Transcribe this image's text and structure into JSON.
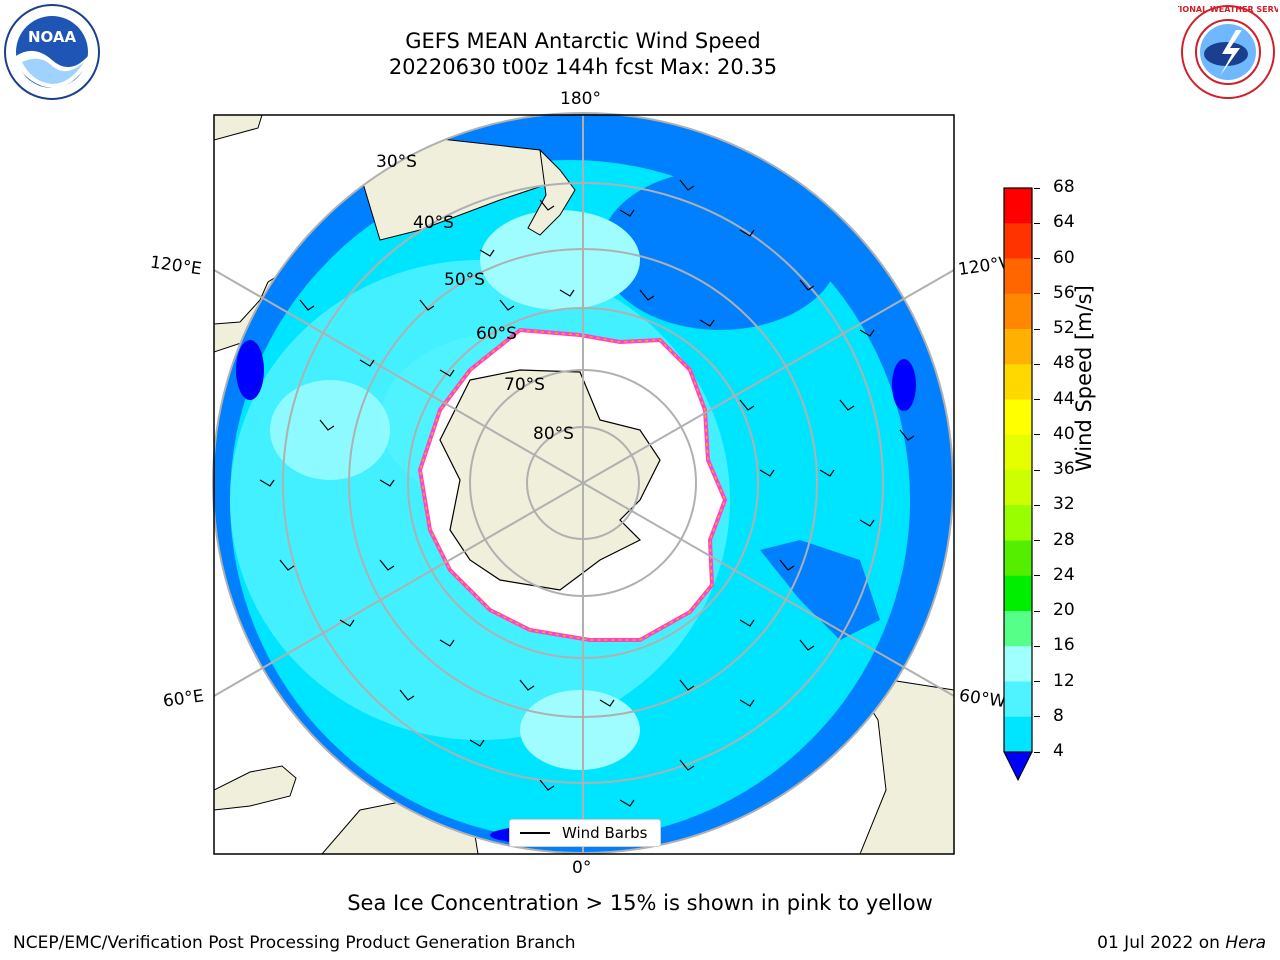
{
  "title": {
    "line1": "GEFS MEAN Antarctic Wind Speed",
    "line2": "20220630 t00z 144h fcst   Max: 20.35"
  },
  "map": {
    "projection": "south-polar-stereographic",
    "center": "South Pole",
    "longitude_labels": [
      "180°",
      "120°E",
      "120°W",
      "60°E",
      "60°W",
      "0°"
    ],
    "latitude_labels": [
      "30°S",
      "40°S",
      "50°S",
      "60°S",
      "70°S",
      "80°S"
    ],
    "ocean_colors": {
      "4-8": "#0080ff",
      "8-12": "#00e5ff",
      "12-16": "#4ff2ff",
      "16-20": "#9ffcff"
    },
    "land_color": "#efefdb",
    "antarctica_ice_shelf_color": "#ffffff",
    "sea_ice_colors": [
      "#ff44cc",
      "#ffaa00",
      "#ffee00"
    ]
  },
  "legend": {
    "label": "Wind Barbs"
  },
  "colorbar": {
    "label": "Wind Speed [m/s]",
    "ticks": [
      "68",
      "64",
      "60",
      "56",
      "52",
      "48",
      "44",
      "40",
      "36",
      "32",
      "28",
      "24",
      "20",
      "16",
      "12",
      "8",
      "4"
    ],
    "colors": [
      "#ff0000",
      "#ff3300",
      "#ff6600",
      "#ff8800",
      "#ffb000",
      "#ffd800",
      "#ffff00",
      "#e6ff00",
      "#ccff00",
      "#99ff00",
      "#55ee00",
      "#00ee00",
      "#55ff88",
      "#a0ffff",
      "#4ff2ff",
      "#00e5ff",
      "#0080ff"
    ],
    "extend_low_color": "#0000ff"
  },
  "note": "Sea Ice Concentration > 15% is shown in pink to yellow",
  "footer": {
    "left": "NCEP/EMC/Verification Post Processing Product Generation Branch",
    "date": "01 Jul 2022 on ",
    "system": "Hera"
  },
  "logos": {
    "noaa_text": "NOAA",
    "nws_text": "NATIONAL WEATHER SERVICE"
  }
}
